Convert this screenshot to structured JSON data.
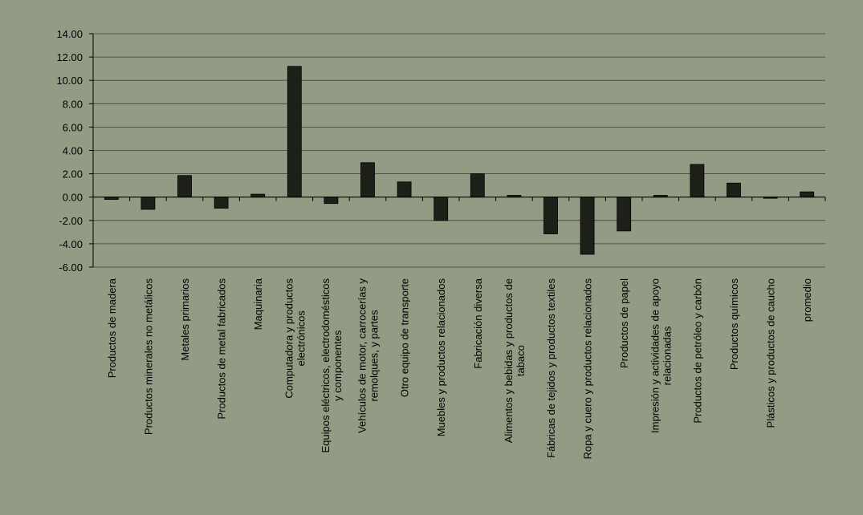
{
  "chart_data": {
    "type": "bar",
    "title": "",
    "xlabel": "",
    "ylabel": "",
    "ylim": [
      -6,
      14
    ],
    "yticks": [
      "14.00",
      "12.00",
      "10.00",
      "8.00",
      "6.00",
      "4.00",
      "2.00",
      "0.00",
      "-2.00",
      "-4.00",
      "-6.00"
    ],
    "grid": true,
    "legend": "none",
    "bar_color": "#1c2018",
    "categories": [
      [
        "Productos de madera"
      ],
      [
        "Productos minerales no metálicos"
      ],
      [
        "Metales primarios"
      ],
      [
        "Productos de metal fabricados"
      ],
      [
        "Maquinaria"
      ],
      [
        "Computadora y productos",
        "electrónicos"
      ],
      [
        "Equipos eléctricos, electrodomésticos",
        "y componentes"
      ],
      [
        "Vehículos de motor, carrocerías y",
        "remolques, y partes"
      ],
      [
        "Otro equipo de transporte"
      ],
      [
        "Muebles y productos relacionados"
      ],
      [
        "Fabricación diversa"
      ],
      [
        "Alimentos y bebidas y productos de",
        "tabaco"
      ],
      [
        "Fábricas de tejidos y productos textiles"
      ],
      [
        "Ropa y cuero y productos relacionados"
      ],
      [
        "Productos de papel"
      ],
      [
        "Impresión y actividades de apoyo",
        "relacionadas"
      ],
      [
        "Productos de petróleo y carbón"
      ],
      [
        "Productos químicos"
      ],
      [
        "Plásticos y productos de caucho"
      ],
      [
        "promedio"
      ]
    ],
    "values": [
      -0.2,
      -1.05,
      1.85,
      -0.95,
      0.25,
      11.2,
      -0.55,
      2.95,
      1.3,
      -2.0,
      2.0,
      0.15,
      -3.15,
      -4.9,
      -2.9,
      0.15,
      2.8,
      1.2,
      -0.1,
      0.45
    ]
  }
}
